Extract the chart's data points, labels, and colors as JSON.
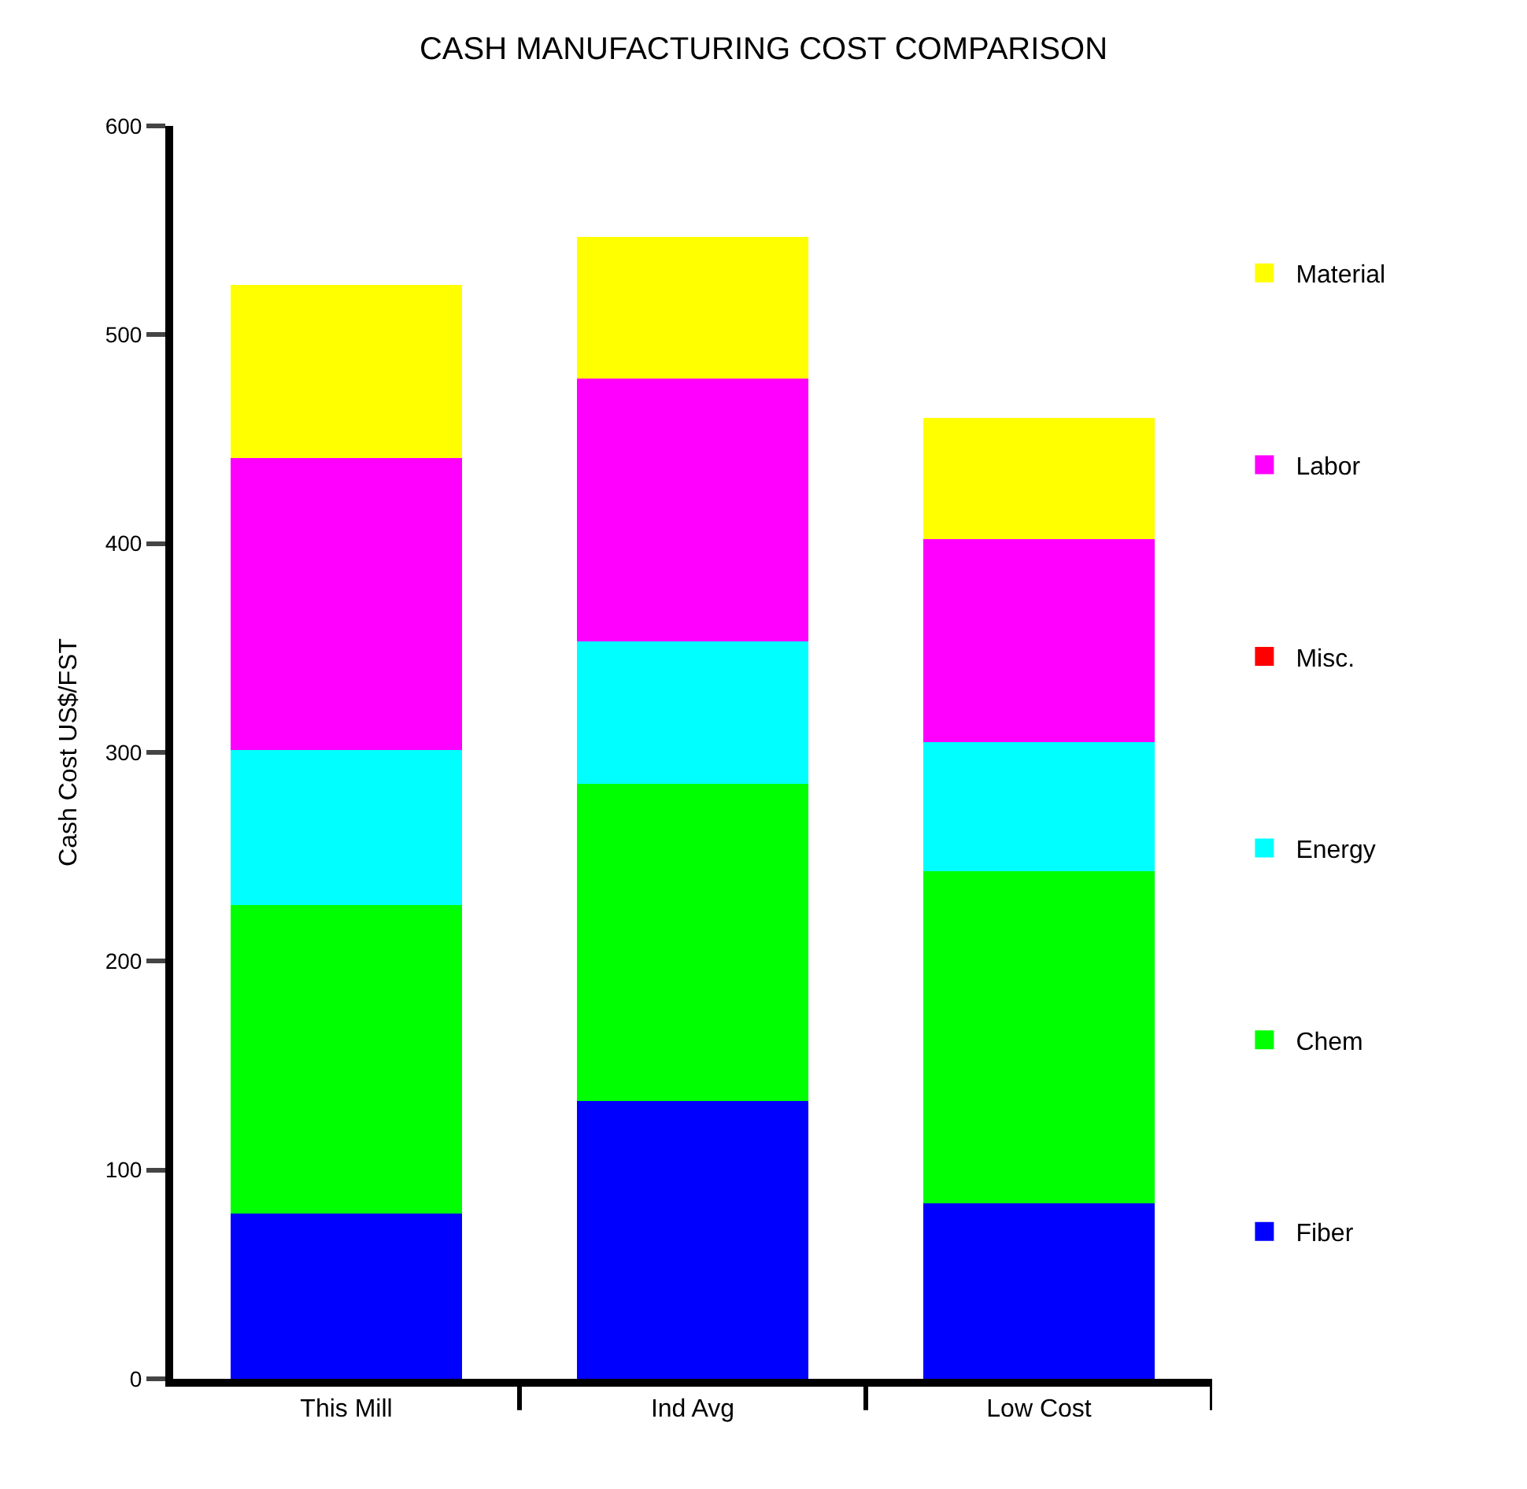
{
  "chart_data": {
    "type": "bar",
    "title": "CASH MANUFACTURING COST COMPARISON",
    "ylabel": "Cash Cost US$/FST",
    "categories": [
      "This Mill",
      "Ind Avg",
      "Low Cost"
    ],
    "stacked": true,
    "ylim": [
      0,
      600
    ],
    "yticks": [
      0,
      100,
      200,
      300,
      400,
      500,
      600
    ],
    "legend": "right",
    "series": [
      {
        "name": "Fiber",
        "color": "#0000ff",
        "values": [
          79,
          133,
          84
        ]
      },
      {
        "name": "Chem",
        "color": "#00ff00",
        "values": [
          148,
          152,
          159
        ]
      },
      {
        "name": "Energy",
        "color": "#00ffff",
        "values": [
          74,
          68,
          62
        ]
      },
      {
        "name": "Misc.",
        "color": "#ff0000",
        "values": [
          0,
          0,
          0
        ]
      },
      {
        "name": "Labor",
        "color": "#ff00ff",
        "values": [
          140,
          126,
          97
        ]
      },
      {
        "name": "Material",
        "color": "#ffff00",
        "values": [
          83,
          68,
          58
        ]
      }
    ]
  }
}
